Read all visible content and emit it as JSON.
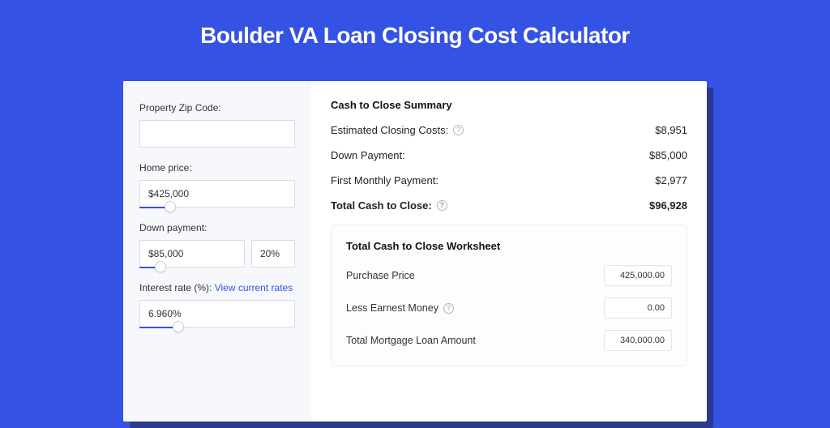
{
  "colors": {
    "page_bg": "#3452e4",
    "card_shadow": "#2b3a8f",
    "card_bg": "#ffffff",
    "left_panel_bg": "#f6f8fb",
    "input_border": "#d8dbe3",
    "slider_track": "#3452e4",
    "link": "#3452e4",
    "worksheet_border": "#eceef3",
    "text_primary": "#111111",
    "text_body": "#333333",
    "help_border": "#b0b5c2"
  },
  "title": "Boulder VA Loan Closing Cost Calculator",
  "left": {
    "zip": {
      "label": "Property Zip Code:",
      "value": ""
    },
    "home_price": {
      "label": "Home price:",
      "value": "$425,000",
      "slider_pct": 20
    },
    "down_payment": {
      "label": "Down payment:",
      "value": "$85,000",
      "pct_value": "20%",
      "slider_pct": 20
    },
    "interest": {
      "label": "Interest rate (%):",
      "link_text": "View current rates",
      "value": "6.960%",
      "slider_pct": 25
    }
  },
  "summary": {
    "title": "Cash to Close Summary",
    "rows": [
      {
        "label": "Estimated Closing Costs:",
        "value": "$8,951",
        "help": true
      },
      {
        "label": "Down Payment:",
        "value": "$85,000",
        "help": false
      },
      {
        "label": "First Monthly Payment:",
        "value": "$2,977",
        "help": false
      }
    ],
    "total": {
      "label": "Total Cash to Close:",
      "value": "$96,928",
      "help": true
    }
  },
  "worksheet": {
    "title": "Total Cash to Close Worksheet",
    "rows": [
      {
        "label": "Purchase Price",
        "value": "425,000.00",
        "help": false
      },
      {
        "label": "Less Earnest Money",
        "value": "0.00",
        "help": true
      },
      {
        "label": "Total Mortgage Loan Amount",
        "value": "340,000.00",
        "help": false
      }
    ]
  }
}
